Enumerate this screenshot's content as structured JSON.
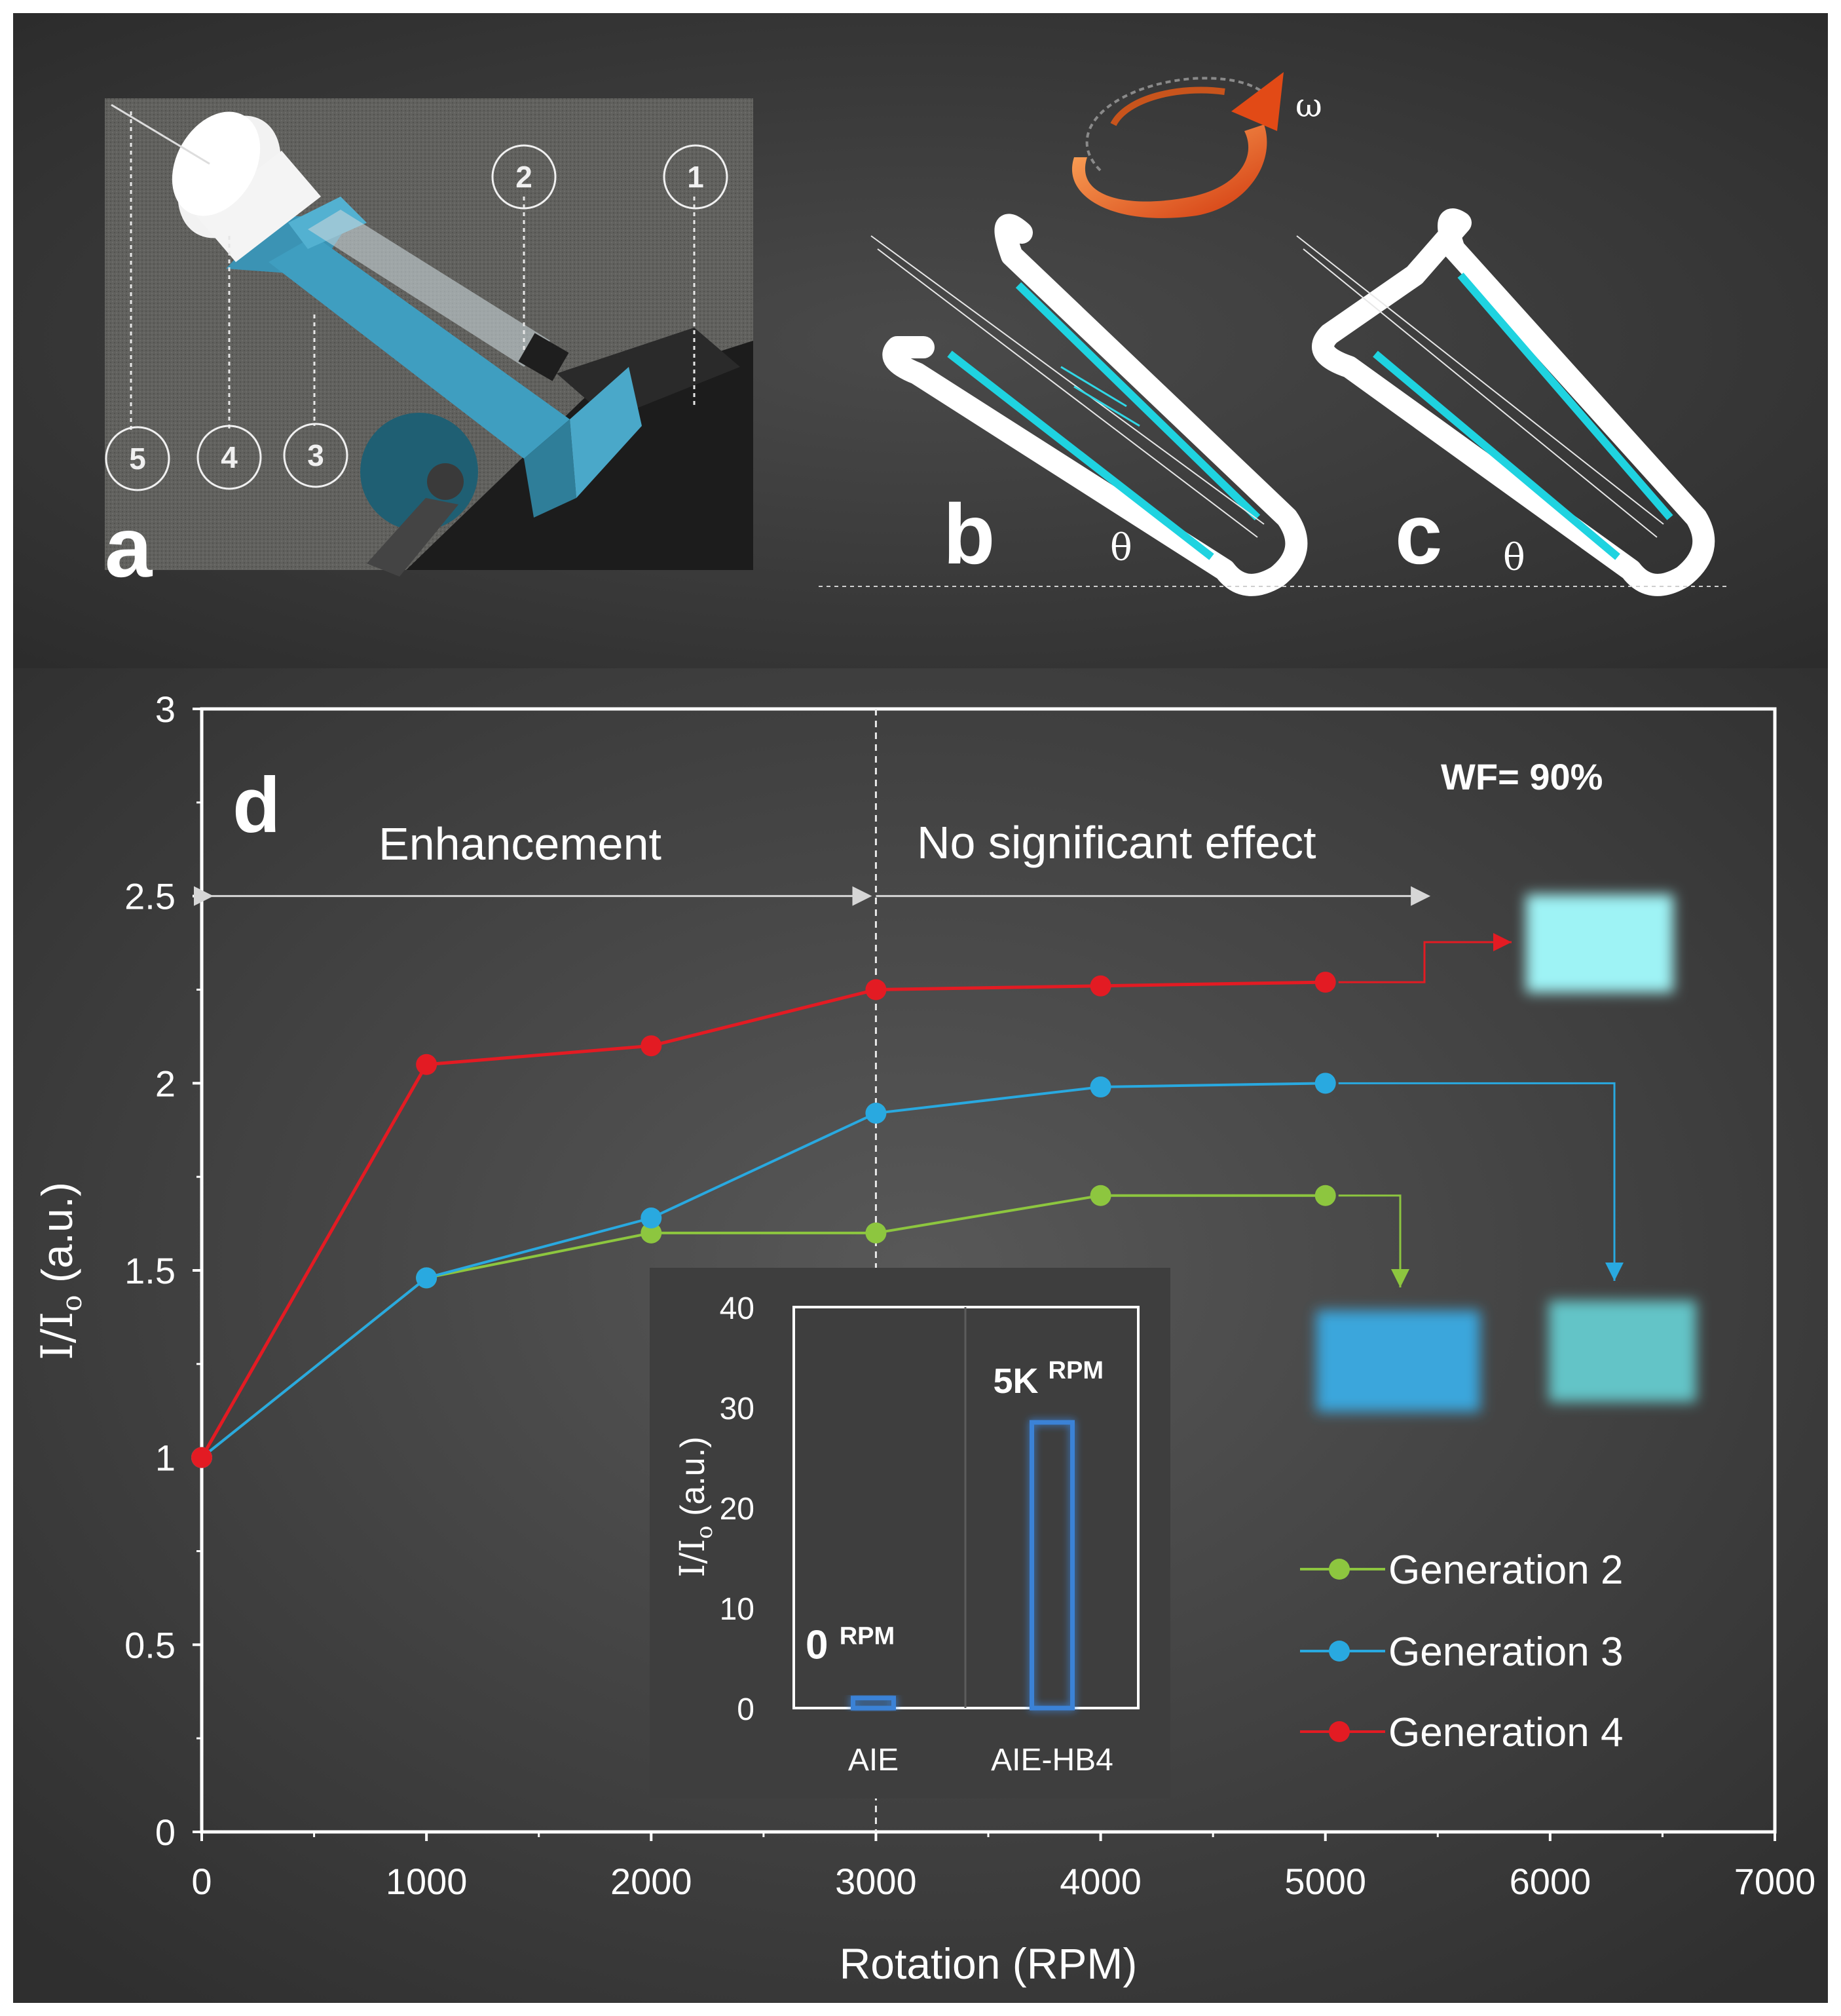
{
  "panels": {
    "a": {
      "label": "a",
      "callouts": [
        "1",
        "2",
        "3",
        "4",
        "5"
      ]
    },
    "b": {
      "label": "b",
      "angle_symbol": "θ"
    },
    "c": {
      "label": "c",
      "angle_symbol": "θ"
    },
    "rotation_symbol": "ω",
    "d": {
      "label": "d"
    }
  },
  "chart_data": [
    {
      "type": "line",
      "xlabel": "Rotation (RPM)",
      "ylabel": "I/I",
      "ylabel_sub": "o",
      "ylabel_unit": " (a.u.)",
      "xlim": [
        0,
        7000
      ],
      "ylim": [
        0,
        3
      ],
      "x_ticks": [
        0,
        1000,
        2000,
        3000,
        4000,
        5000,
        6000,
        7000
      ],
      "x_tick_labels": [
        "0",
        "1000",
        "2000",
        "3000",
        "4000",
        "5000",
        "6000",
        "7000"
      ],
      "y_ticks": [
        0,
        0.5,
        1,
        1.5,
        2,
        2.5,
        3
      ],
      "y_tick_labels": [
        "0",
        "0.5",
        "1",
        "1.5",
        "2",
        "2.5",
        "3"
      ],
      "grid": false,
      "legend_position": "bottom-right",
      "annotations": {
        "wf": "WF= 90%",
        "left_region": "Enhancement",
        "right_region": "No significant effect",
        "divider_x": 3000
      },
      "series": [
        {
          "name": "Generation 2",
          "color": "#8dc63f",
          "x": [
            0,
            1000,
            2000,
            3000,
            4000,
            5000
          ],
          "y": [
            1.0,
            1.48,
            1.6,
            1.6,
            1.7,
            1.7
          ]
        },
        {
          "name": "Generation 3",
          "color": "#29a9e0",
          "x": [
            0,
            1000,
            2000,
            3000,
            4000,
            5000
          ],
          "y": [
            1.0,
            1.48,
            1.64,
            1.92,
            1.99,
            2.0
          ]
        },
        {
          "name": "Generation 4",
          "color": "#e31b23",
          "x": [
            0,
            1000,
            2000,
            3000,
            4000,
            5000
          ],
          "y": [
            1.0,
            2.05,
            2.1,
            2.25,
            2.26,
            2.27
          ]
        }
      ],
      "swatch_colors": {
        "generation_4": "#9ef3f5",
        "generation_2": "#3aa6dc",
        "generation_3": "#63c4c7"
      }
    },
    {
      "type": "bar",
      "ylabel": "I/I",
      "ylabel_sub": "o",
      "ylabel_unit": " (a.u.)",
      "ylim": [
        0,
        40
      ],
      "y_ticks": [
        0,
        10,
        20,
        30,
        40
      ],
      "y_tick_labels": [
        "0",
        "10",
        "20",
        "30",
        "40"
      ],
      "categories": [
        "AIE",
        "AIE-HB4"
      ],
      "values": [
        1,
        28.5
      ],
      "bar_labels": [
        {
          "main": "0",
          "sup": "RPM"
        },
        {
          "main": "5K",
          "sup": "RPM"
        }
      ],
      "color": "#3b82d6"
    }
  ]
}
